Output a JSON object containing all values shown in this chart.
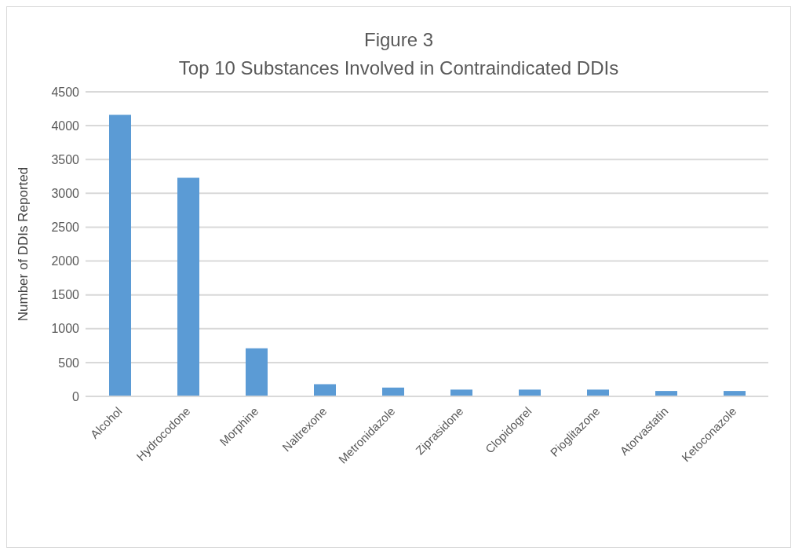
{
  "chart_data": {
    "type": "bar",
    "title": "Figure 3",
    "subtitle": "Top 10 Substances Involved in Contraindicated DDIs",
    "ylabel": "Number of DDIs Reported",
    "categories": [
      "Alcohol",
      "Hydrocodone",
      "Morphine",
      "Naltrexone",
      "Metronidazole",
      "Ziprasidone",
      "Clopidogrel",
      "Pioglitazone",
      "Atorvastatin",
      "Ketoconazole"
    ],
    "values": [
      4160,
      3230,
      710,
      180,
      130,
      100,
      100,
      100,
      80,
      80
    ],
    "color": "#5b9bd5",
    "ylim": [
      0,
      4500
    ],
    "yticks": [
      0,
      500,
      1000,
      1500,
      2000,
      2500,
      3000,
      3500,
      4000,
      4500
    ],
    "grid": "y"
  }
}
